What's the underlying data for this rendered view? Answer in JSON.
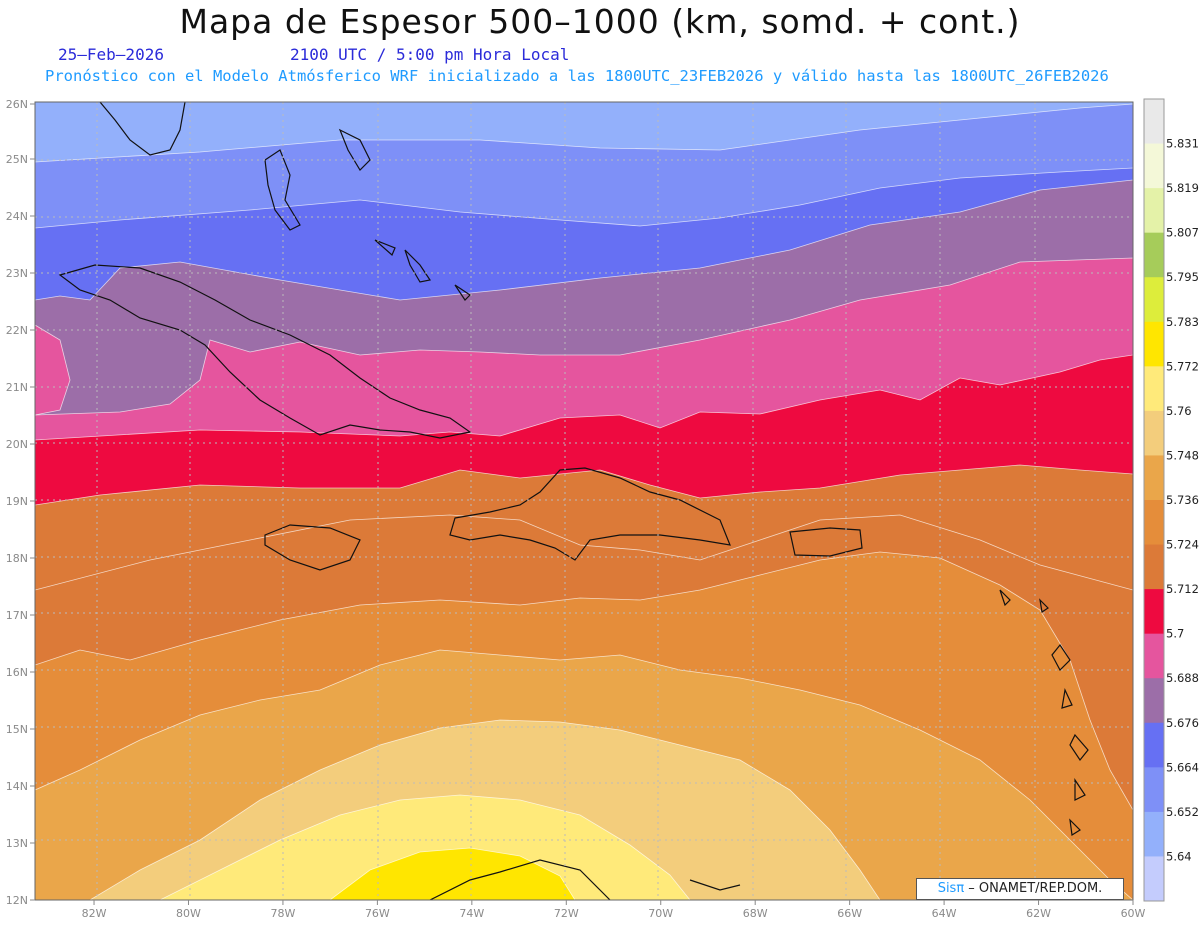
{
  "header": {
    "title": "Mapa de Espesor 500–1000 (km, somd. + cont.)",
    "date": "25–Feb–2026",
    "time": "2100 UTC / 5:00 pm Hora Local",
    "subtitle": "Pronóstico con el Modelo Atmósferico WRF inicializado a las 1800UTC_23FEB2026 y válido hasta las  1800UTC_26FEB2026"
  },
  "map": {
    "lat_labels": [
      "26N",
      "25N",
      "24N",
      "23N",
      "22N",
      "21N",
      "20N",
      "19N",
      "18N",
      "17N",
      "16N",
      "15N",
      "14N",
      "13N",
      "12N"
    ],
    "lon_labels": [
      "82W",
      "80W",
      "78W",
      "76W",
      "74W",
      "72W",
      "70W",
      "68W",
      "66W",
      "64W",
      "62W",
      "60W"
    ],
    "lat_range": [
      12,
      26
    ],
    "lon_range": [
      -83.25,
      -60
    ],
    "grid": true
  },
  "colorbar": {
    "levels": [
      "5.831",
      "5.819",
      "5.807",
      "5.795",
      "5.783",
      "5.772",
      "5.76",
      "5.748",
      "5.736",
      "5.724",
      "5.712",
      "5.7",
      "5.688",
      "5.676",
      "5.664",
      "5.652",
      "5.64"
    ],
    "colors": {
      "c_top": "#e9e9e9",
      "c5831": "#f4f8d8",
      "c5819": "#e4f2a8",
      "c5807": "#a6cc5a",
      "c5795": "#dded3b",
      "c5783": "#ffe600",
      "c5772": "#ffea7a",
      "c5760": "#f3cd7c",
      "c5748": "#eaa64a",
      "c5736": "#e58d3a",
      "c5724": "#dc7a38",
      "c5712": "#ee0a40",
      "c5700": "#e5559e",
      "c5688": "#9c6ea8",
      "c5676": "#6670f3",
      "c5664": "#7e90f7",
      "c5652": "#93b0fb",
      "c5640": "#c4ccfd"
    }
  },
  "credit": {
    "sis": "Sisπ",
    "org": " – ONAMET/REP.DOM."
  }
}
